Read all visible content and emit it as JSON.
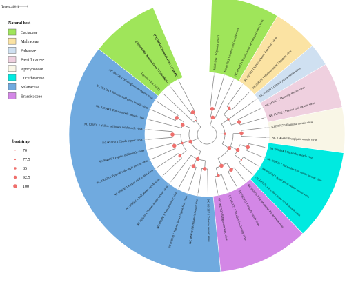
{
  "scale_bar": {
    "label": "Tree scale: 1"
  },
  "legend_host": {
    "title": "Natural host",
    "items": [
      {
        "name": "Cactaceae",
        "color": "#9fe55a"
      },
      {
        "name": "Malvaceae",
        "color": "#fbe3a3"
      },
      {
        "name": "Fabaceae",
        "color": "#cfe0f1"
      },
      {
        "name": "Passifloraceae",
        "color": "#efd0df"
      },
      {
        "name": "Apocynaceae",
        "color": "#f9f6e6"
      },
      {
        "name": "Cucurbitaceae",
        "color": "#00eae0"
      },
      {
        "name": "Solanaceae",
        "color": "#70aadf"
      },
      {
        "name": "Brassicaceae",
        "color": "#d387e6"
      }
    ]
  },
  "legend_bootstrap": {
    "title": "bootstrap",
    "items": [
      {
        "label": "70",
        "value": 70
      },
      {
        "label": "77.5",
        "value": 77.5
      },
      {
        "label": "85",
        "value": 85
      },
      {
        "label": "92.5",
        "value": 92.5
      },
      {
        "label": "100",
        "value": 100
      }
    ]
  },
  "tree": {
    "taxa": [
      {
        "label": "NC 018453 1 Opuntia virus 2",
        "host": "Cactaceae"
      },
      {
        "label": "NC 011803 1 Cactus mild mottle virus",
        "host": "Cactaceae"
      },
      {
        "label": "NC 016442 1 Rattail cactus necrosis associated virus",
        "host": "Cactaceae"
      },
      {
        "label": "NC 025381 1 Hibiscus latent Fort Pierce virus",
        "host": "Malvaceae"
      },
      {
        "label": "NC 008310 1 Hibiscus latent Singapore virus",
        "host": "Malvaceae"
      },
      {
        "label": "NC 018539 1 Clitoria yellow mottle virus",
        "host": "Fabaceae"
      },
      {
        "label": "NC 040761 1 Maracuja mosaic virus",
        "host": "Passifloraceae"
      },
      {
        "label": "NC 015552 1 Passion fruit mosaic virus",
        "host": "Passifloraceae"
      },
      {
        "label": "KJ395757 1 Plumeria mosaic virus",
        "host": "Apocynaceae"
      },
      {
        "label": "NC 014546 1 Frangipani mosaic virus",
        "host": "Apocynaceae"
      },
      {
        "label": "NC 008614 1 Cucumber mottle virus",
        "host": "Cucurbitaceae"
      },
      {
        "label": "NC 002633 1 Cucumber fruit mottle mosaic virus",
        "host": "Cucurbitaceae"
      },
      {
        "label": "NC 003610 1 Kyuri green mottle mosaic virus",
        "host": "Cucurbitaceae"
      },
      {
        "label": "NC 003878 1 Zucchini green mottle mosaic virus",
        "host": "Cucurbitaceae"
      },
      {
        "label": "NC 003803 1 Streptocarpus flower break virus",
        "host": "Brassicaceae"
      },
      {
        "label": "NC 003355 1 Wasabi mottle virus",
        "host": "Brassicaceae"
      },
      {
        "label": "NC 001873 1 Turnip vein-clearing virus",
        "host": "Brassicaceae"
      },
      {
        "label": "NC 002792 1 Ribgrass mosaic virus",
        "host": "Brassicaceae"
      },
      {
        "label": "NC 001367 1 Tobacco mosaic virus",
        "host": "Solanaceae"
      },
      {
        "label": "NC 009641 1 Rehmannia mosaic virus",
        "host": "Solanaceae"
      },
      {
        "label": "NC 028478 1 Tomato brown rugose fruit virus",
        "host": "Solanaceae"
      },
      {
        "label": "NC 002692 1 Tomato mosaic virus",
        "host": "Solanaceae"
      },
      {
        "label": "NC 022230 1 Tomato mottle mosaic virus",
        "host": "Solanaceae"
      },
      {
        "label": "NC 009642 1 Bell pepper mottle virus",
        "host": "Solanaceae"
      },
      {
        "label": "NC 003630 1 Pepper mild mottle virus",
        "host": "Solanaceae"
      },
      {
        "label": "NC 030229 1 Tropical soda apple mosaic virus",
        "host": "Solanaceae"
      },
      {
        "label": "NC 004106 1 Paprika mild mottle virus",
        "host": "Solanaceae"
      },
      {
        "label": "NC 003852 1 Obuda pepper virus",
        "host": "Solanaceae"
      },
      {
        "label": "NC 022801 1 Yellow tailflower mild mottle virus",
        "host": "Solanaceae"
      },
      {
        "label": "NC 010944 1 Tomato mottle mosaic virus",
        "host": "Solanaceae"
      },
      {
        "label": "NC 001556 1 Tobacco mild green mosaic virus",
        "host": "Solanaceae"
      },
      {
        "label": "NC 001728 1 Odontoglossum ringspot virus",
        "host": "Solanaceae"
      },
      {
        "label": "Opuntia virus 2 (CP)",
        "host": "Cactaceae"
      },
      {
        "label": "(OQ248440) Opuntia Virus 2 (Edo-MEX)",
        "host": "Cactaceae",
        "bold": true
      },
      {
        "label": "(OQ248441) Opuntia virus 2 (CDMX)",
        "host": "Cactaceae",
        "bold": true
      }
    ]
  }
}
